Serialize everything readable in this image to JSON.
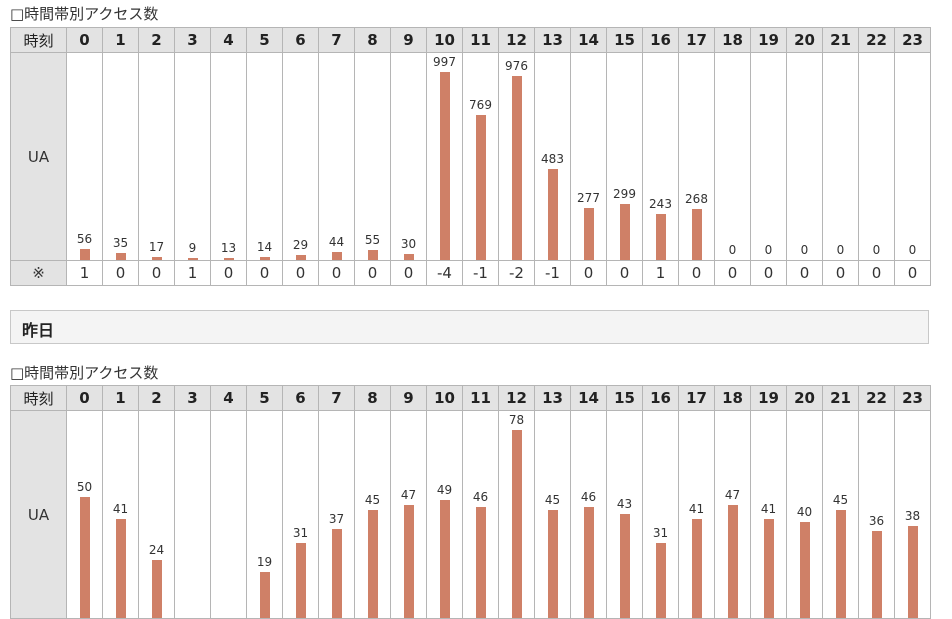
{
  "today": {
    "caption": "□時間帯別アクセス数",
    "header_label": "時刻",
    "row_label": "UA",
    "diff_label": "※",
    "hours": [
      "0",
      "1",
      "2",
      "3",
      "4",
      "5",
      "6",
      "7",
      "8",
      "9",
      "10",
      "11",
      "12",
      "13",
      "14",
      "15",
      "16",
      "17",
      "18",
      "19",
      "20",
      "21",
      "22",
      "23"
    ],
    "values": [
      56,
      35,
      17,
      9,
      13,
      14,
      29,
      44,
      55,
      30,
      997,
      769,
      976,
      483,
      277,
      299,
      243,
      268,
      0,
      0,
      0,
      0,
      0,
      0
    ],
    "diffs": [
      "1",
      "0",
      "0",
      "1",
      "0",
      "0",
      "0",
      "0",
      "0",
      "0",
      "-4",
      "-1",
      "-2",
      "-1",
      "0",
      "0",
      "1",
      "0",
      "0",
      "0",
      "0",
      "0",
      "0",
      "0"
    ]
  },
  "section_title": "昨日",
  "yesterday": {
    "caption": "□時間帯別アクセス数",
    "header_label": "時刻",
    "row_label": "UA",
    "hours": [
      "0",
      "1",
      "2",
      "3",
      "4",
      "5",
      "6",
      "7",
      "8",
      "9",
      "10",
      "11",
      "12",
      "13",
      "14",
      "15",
      "16",
      "17",
      "18",
      "19",
      "20",
      "21",
      "22",
      "23"
    ],
    "values": [
      50,
      41,
      24,
      null,
      null,
      19,
      31,
      37,
      45,
      47,
      49,
      46,
      78,
      45,
      46,
      43,
      31,
      41,
      47,
      41,
      40,
      45,
      36,
      38
    ]
  },
  "chart_data": [
    {
      "type": "bar",
      "title": "□時間帯別アクセス数",
      "xlabel": "時刻",
      "ylabel": "UA",
      "categories": [
        "0",
        "1",
        "2",
        "3",
        "4",
        "5",
        "6",
        "7",
        "8",
        "9",
        "10",
        "11",
        "12",
        "13",
        "14",
        "15",
        "16",
        "17",
        "18",
        "19",
        "20",
        "21",
        "22",
        "23"
      ],
      "values": [
        56,
        35,
        17,
        9,
        13,
        14,
        29,
        44,
        55,
        30,
        997,
        769,
        976,
        483,
        277,
        299,
        243,
        268,
        0,
        0,
        0,
        0,
        0,
        0
      ]
    },
    {
      "type": "bar",
      "title": "□時間帯別アクセス数",
      "xlabel": "時刻",
      "ylabel": "UA",
      "categories": [
        "0",
        "1",
        "2",
        "3",
        "4",
        "5",
        "6",
        "7",
        "8",
        "9",
        "10",
        "11",
        "12",
        "13",
        "14",
        "15",
        "16",
        "17",
        "18",
        "19",
        "20",
        "21",
        "22",
        "23"
      ],
      "values": [
        50,
        41,
        24,
        null,
        null,
        19,
        31,
        37,
        45,
        47,
        49,
        46,
        78,
        45,
        46,
        43,
        31,
        41,
        47,
        41,
        40,
        45,
        36,
        38
      ]
    }
  ],
  "colors": {
    "bar": "#cf8067",
    "header_bg": "#e3e3e3",
    "border": "#b5b5b5"
  }
}
